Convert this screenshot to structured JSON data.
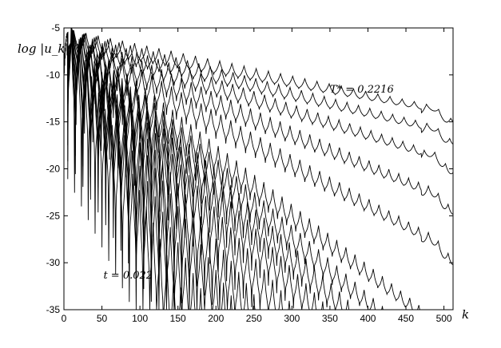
{
  "chart_data": {
    "type": "line",
    "xlabel": "k",
    "ylabel": "log |u_k|",
    "xlim": [
      0,
      512
    ],
    "ylim": [
      -35,
      -5
    ],
    "xticks": [
      0,
      50,
      100,
      150,
      200,
      250,
      300,
      350,
      400,
      450,
      500
    ],
    "yticks": [
      -5,
      -10,
      -15,
      -20,
      -25,
      -30,
      -35
    ],
    "grid": false,
    "legend": "none",
    "annotations": [
      {
        "text": "T* = 0.2216",
        "x": 350,
        "y": -11.9
      },
      {
        "text": "t = 0.022",
        "x": 52,
        "y": -31.7
      }
    ],
    "series": [
      {
        "peak": [
          5,
          -5.5
        ],
        "end": [
          512,
          -13.8
        ],
        "slope": -0.0157,
        "period": 16,
        "dip": 1.8,
        "spike": 0.4
      },
      {
        "peak": [
          5,
          -5.5
        ],
        "end": [
          512,
          -16.0
        ],
        "slope": -0.0197,
        "period": 15,
        "dip": 2.0,
        "spike": 0.5
      },
      {
        "peak": [
          5,
          -5.5
        ],
        "end": [
          512,
          -19.0
        ],
        "slope": -0.0255,
        "period": 14,
        "dip": 2.2,
        "spike": 0.7
      },
      {
        "peak": [
          5,
          -5.5
        ],
        "end": [
          512,
          -23.2
        ],
        "slope": -0.0336,
        "period": 13,
        "dip": 2.5,
        "spike": 1.0
      },
      {
        "peak": [
          5,
          -5.5
        ],
        "end": [
          512,
          -28.5
        ],
        "slope": -0.0436,
        "period": 13,
        "dip": 2.8,
        "spike": 1.4
      },
      {
        "peak": [
          5,
          -5.5
        ],
        "end": [
          471,
          -35.0
        ],
        "slope": -0.0555,
        "period": 12,
        "dip": 3.2,
        "spike": 1.9
      },
      {
        "peak": [
          5,
          -5.5
        ],
        "end": [
          420,
          -35.0
        ],
        "slope": -0.0693,
        "period": 12,
        "dip": 3.6,
        "spike": 2.5
      },
      {
        "peak": [
          5,
          -5.5
        ],
        "end": [
          382,
          -35.0
        ],
        "slope": -0.082,
        "period": 11,
        "dip": 4.0,
        "spike": 3.2
      },
      {
        "peak": [
          5,
          -5.5
        ],
        "end": [
          345,
          -35.0
        ],
        "slope": -0.0975,
        "period": 11,
        "dip": 4.5,
        "spike": 4.0
      },
      {
        "peak": [
          5,
          -5.5
        ],
        "end": [
          300,
          -35.0
        ],
        "slope": -0.1166,
        "period": 11,
        "dip": 5.0,
        "spike": 4.9
      },
      {
        "peak": [
          5,
          -5.5
        ],
        "end": [
          258,
          -35.0
        ],
        "slope": -0.1425,
        "period": 10,
        "dip": 5.5,
        "spike": 6.0
      },
      {
        "peak": [
          5,
          -5.5
        ],
        "end": [
          225,
          -35.0
        ],
        "slope": -0.1741,
        "period": 10,
        "dip": 6.0,
        "spike": 7.2
      },
      {
        "peak": [
          5,
          -5.5
        ],
        "end": [
          188,
          -35.0
        ],
        "slope": -0.2107,
        "period": 10,
        "dip": 6.5,
        "spike": 8.5
      },
      {
        "peak": [
          5,
          -5.5
        ],
        "end": [
          160,
          -35.0
        ],
        "slope": -0.255,
        "period": 9,
        "dip": 7.0,
        "spike": 10.0
      }
    ]
  }
}
